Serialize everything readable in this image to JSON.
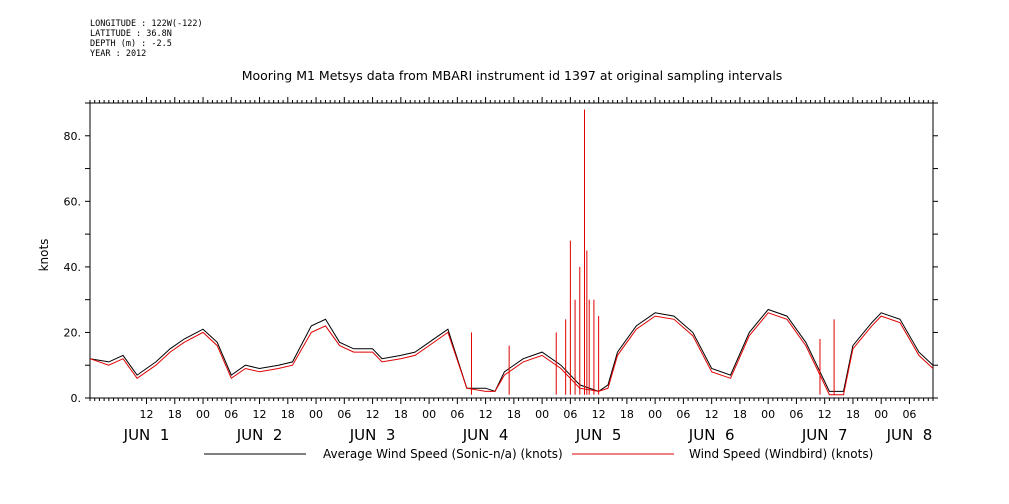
{
  "meta": {
    "longitude": "LONGITUDE : 122W(-122)",
    "latitude": "LATITUDE : 36.8N",
    "depth": "DEPTH (m) : -2.5",
    "year": "YEAR : 2012"
  },
  "chart_data": {
    "type": "line",
    "title": "Mooring M1 Metsys data from MBARI instrument id 1397 at original sampling intervals",
    "xlabel": "",
    "ylabel": "knots",
    "ylim": [
      0,
      90
    ],
    "yticks": [
      0,
      20,
      40,
      60,
      80
    ],
    "ytick_labels": [
      "0.",
      "20.",
      "40.",
      "60.",
      "80."
    ],
    "xlim_hours": [
      0,
      179
    ],
    "hour_ticks": [
      {
        "h": 12,
        "label": "12"
      },
      {
        "h": 18,
        "label": "18"
      },
      {
        "h": 24,
        "label": "00"
      },
      {
        "h": 30,
        "label": "06"
      },
      {
        "h": 36,
        "label": "12"
      },
      {
        "h": 42,
        "label": "18"
      },
      {
        "h": 48,
        "label": "00"
      },
      {
        "h": 54,
        "label": "06"
      },
      {
        "h": 60,
        "label": "12"
      },
      {
        "h": 66,
        "label": "18"
      },
      {
        "h": 72,
        "label": "00"
      },
      {
        "h": 78,
        "label": "06"
      },
      {
        "h": 84,
        "label": "12"
      },
      {
        "h": 90,
        "label": "18"
      },
      {
        "h": 96,
        "label": "00"
      },
      {
        "h": 102,
        "label": "06"
      },
      {
        "h": 108,
        "label": "12"
      },
      {
        "h": 114,
        "label": "18"
      },
      {
        "h": 120,
        "label": "00"
      },
      {
        "h": 126,
        "label": "06"
      },
      {
        "h": 132,
        "label": "12"
      },
      {
        "h": 138,
        "label": "18"
      },
      {
        "h": 144,
        "label": "00"
      },
      {
        "h": 150,
        "label": "06"
      },
      {
        "h": 156,
        "label": "12"
      },
      {
        "h": 162,
        "label": "18"
      },
      {
        "h": 168,
        "label": "00"
      },
      {
        "h": 174,
        "label": "06"
      }
    ],
    "date_labels": [
      {
        "h": 12,
        "label": "JUN  1"
      },
      {
        "h": 36,
        "label": "JUN  2"
      },
      {
        "h": 60,
        "label": "JUN  3"
      },
      {
        "h": 84,
        "label": "JUN  4"
      },
      {
        "h": 108,
        "label": "JUN  5"
      },
      {
        "h": 132,
        "label": "JUN  6"
      },
      {
        "h": 156,
        "label": "JUN  7"
      },
      {
        "h": 174,
        "label": "JUN  8"
      }
    ],
    "series": [
      {
        "name": "Average Wind Speed (Sonic-n/a) (knots)",
        "color": "#000000",
        "x": [
          0,
          4,
          7,
          10,
          14,
          17,
          20,
          24,
          27,
          30,
          33,
          36,
          40,
          43,
          47,
          50,
          53,
          56,
          60,
          62,
          66,
          69,
          72,
          76,
          80,
          84,
          86,
          88,
          92,
          96,
          100,
          104,
          108,
          110,
          112,
          116,
          120,
          124,
          128,
          132,
          136,
          140,
          144,
          148,
          152,
          155,
          157,
          160,
          162,
          166,
          168,
          172,
          176,
          179
        ],
        "y": [
          12,
          11,
          13,
          7,
          11,
          15,
          18,
          21,
          17,
          7,
          10,
          9,
          10,
          11,
          22,
          24,
          17,
          15,
          15,
          12,
          13,
          14,
          17,
          21,
          3,
          3,
          2,
          8,
          12,
          14,
          10,
          4,
          2,
          4,
          14,
          22,
          26,
          25,
          20,
          9,
          7,
          20,
          27,
          25,
          17,
          8,
          2,
          2,
          16,
          23,
          26,
          24,
          14,
          10
        ]
      },
      {
        "name": "Wind Speed (Windbird) (knots)",
        "color": "#e00000",
        "x": [
          0,
          4,
          7,
          10,
          14,
          17,
          20,
          24,
          27,
          30,
          33,
          36,
          40,
          43,
          47,
          50,
          53,
          56,
          60,
          62,
          66,
          69,
          72,
          76,
          80,
          84,
          86,
          88,
          92,
          96,
          100,
          104,
          108,
          110,
          112,
          116,
          120,
          124,
          128,
          132,
          136,
          140,
          144,
          148,
          152,
          155,
          157,
          160,
          162,
          166,
          168,
          172,
          176,
          179
        ],
        "y": [
          12,
          10,
          12,
          6,
          10,
          14,
          17,
          20,
          16,
          6,
          9,
          8,
          9,
          10,
          20,
          22,
          16,
          14,
          14,
          11,
          12,
          13,
          16,
          20,
          3,
          2,
          2,
          7,
          11,
          13,
          9,
          3,
          2,
          3,
          13,
          21,
          25,
          24,
          19,
          8,
          6,
          19,
          26,
          24,
          16,
          7,
          1,
          1,
          15,
          22,
          25,
          23,
          13,
          9
        ],
        "spikes": [
          {
            "x": 99,
            "y": 20
          },
          {
            "x": 101,
            "y": 24
          },
          {
            "x": 102,
            "y": 48
          },
          {
            "x": 103,
            "y": 30
          },
          {
            "x": 104,
            "y": 40
          },
          {
            "x": 105,
            "y": 88
          },
          {
            "x": 105.5,
            "y": 45
          },
          {
            "x": 106,
            "y": 30
          },
          {
            "x": 107,
            "y": 30
          },
          {
            "x": 108,
            "y": 25
          },
          {
            "x": 81,
            "y": 20
          },
          {
            "x": 89,
            "y": 16
          },
          {
            "x": 155,
            "y": 18
          },
          {
            "x": 158,
            "y": 24
          }
        ]
      }
    ],
    "legend": "bottom"
  }
}
